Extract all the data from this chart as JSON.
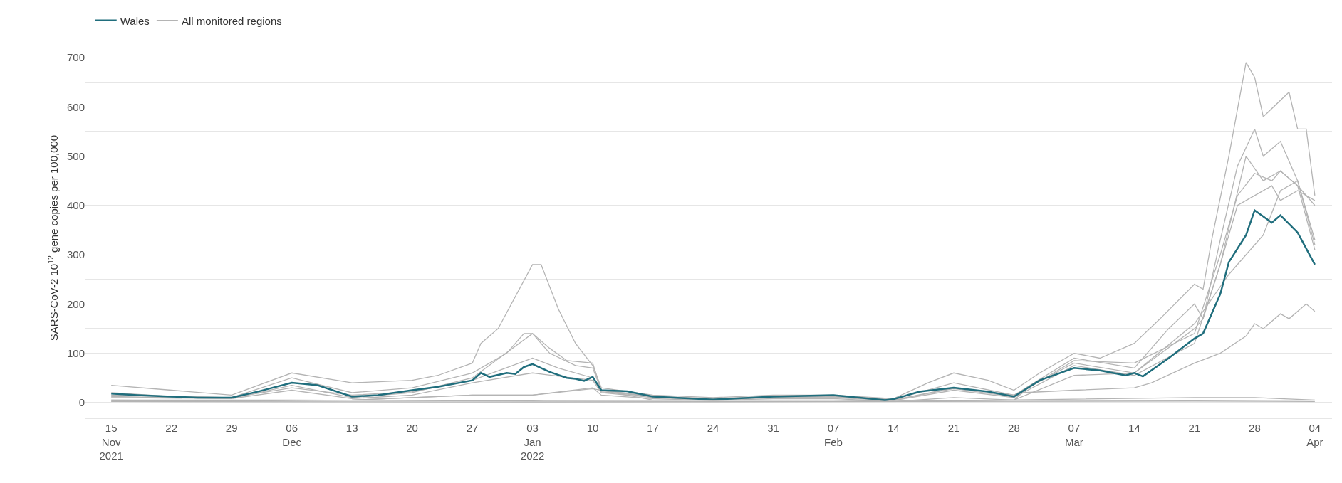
{
  "chart_data": {
    "type": "line",
    "ylabel": "SARS-CoV-2 10$^{12}$ gene copies per 100,000",
    "xlim": [
      "2021-11-12",
      "2022-04-06"
    ],
    "xticks": [
      {
        "value": "2021-11-15",
        "label": "15\nNov\n2021"
      },
      {
        "value": "2021-11-22",
        "label": "22"
      },
      {
        "value": "2021-11-29",
        "label": "29"
      },
      {
        "value": "2021-12-06",
        "label": "06\nDec"
      },
      {
        "value": "2021-12-13",
        "label": "13"
      },
      {
        "value": "2021-12-20",
        "label": "20"
      },
      {
        "value": "2021-12-27",
        "label": "27"
      },
      {
        "value": "2022-01-03",
        "label": "03\nJan\n2022"
      },
      {
        "value": "2022-01-10",
        "label": "10"
      },
      {
        "value": "2022-01-17",
        "label": "17"
      },
      {
        "value": "2022-01-24",
        "label": "24"
      },
      {
        "value": "2022-01-31",
        "label": "31"
      },
      {
        "value": "2022-02-07",
        "label": "07\nFeb"
      },
      {
        "value": "2022-02-14",
        "label": "14"
      },
      {
        "value": "2022-02-21",
        "label": "21"
      },
      {
        "value": "2022-02-28",
        "label": "28"
      },
      {
        "value": "2022-03-07",
        "label": "07\nMar"
      },
      {
        "value": "2022-03-14",
        "label": "14"
      },
      {
        "value": "2022-03-21",
        "label": "21"
      },
      {
        "value": "2022-03-28",
        "label": "28"
      },
      {
        "value": "2022-04-04",
        "label": "04\nApr"
      }
    ],
    "ylim": [
      -32,
      700
    ],
    "yticks": [
      0,
      {
        "value": 50,
        "label": null
      },
      100,
      {
        "value": 150,
        "label": null
      },
      200,
      {
        "value": 250,
        "label": null
      },
      300,
      {
        "value": 350,
        "label": null
      },
      400,
      {
        "value": 450,
        "label": null
      },
      500,
      {
        "value": 550,
        "label": null
      },
      600,
      {
        "value": 650,
        "label": null
      },
      700
    ],
    "grid": "y",
    "legend": "top left",
    "marker": "none",
    "line_style": "solid",
    "series": [
      {
        "name": "Wales",
        "color": "#206e7d",
        "x": [
          "2021-11-15",
          "2021-11-18",
          "2021-11-22",
          "2021-11-25",
          "2021-11-29",
          "2021-12-02",
          "2021-12-06",
          "2021-12-09",
          "2021-12-13",
          "2021-12-16",
          "2021-12-20",
          "2021-12-23",
          "2021-12-27",
          "2021-12-28",
          "2021-12-29",
          "2021-12-31",
          "2022-01-01",
          "2022-01-02",
          "2022-01-03",
          "2022-01-05",
          "2022-01-07",
          "2022-01-08",
          "2022-01-09",
          "2022-01-10",
          "2022-01-11",
          "2022-01-14",
          "2022-01-17",
          "2022-01-24",
          "2022-01-31",
          "2022-02-07",
          "2022-02-13",
          "2022-02-14",
          "2022-02-17",
          "2022-02-21",
          "2022-02-25",
          "2022-02-28",
          "2022-03-03",
          "2022-03-07",
          "2022-03-10",
          "2022-03-13",
          "2022-03-14",
          "2022-03-15",
          "2022-03-18",
          "2022-03-21",
          "2022-03-22",
          "2022-03-24",
          "2022-03-25",
          "2022-03-27",
          "2022-03-28",
          "2022-03-30",
          "2022-03-31",
          "2022-04-02",
          "2022-04-04"
        ],
        "values": [
          18,
          15,
          12,
          10,
          10,
          22,
          40,
          35,
          12,
          15,
          25,
          32,
          45,
          60,
          52,
          60,
          58,
          72,
          78,
          62,
          50,
          48,
          44,
          52,
          25,
          23,
          12,
          6,
          12,
          15,
          5,
          7,
          22,
          30,
          22,
          12,
          45,
          70,
          65,
          55,
          60,
          53,
          90,
          130,
          140,
          220,
          285,
          340,
          390,
          365,
          380,
          345,
          280
        ]
      },
      {
        "name": "All monitored regions",
        "color": "#b4b4b4",
        "x": [
          "2021-11-15",
          "2021-11-22",
          "2021-11-29",
          "2021-12-06",
          "2021-12-13",
          "2021-12-20",
          "2021-12-23",
          "2021-12-27",
          "2021-12-28",
          "2021-12-30",
          "2022-01-03",
          "2022-01-04",
          "2022-01-06",
          "2022-01-08",
          "2022-01-10",
          "2022-01-11",
          "2022-01-17",
          "2022-01-24",
          "2022-01-31",
          "2022-02-07",
          "2022-02-14",
          "2022-02-18",
          "2022-02-21",
          "2022-02-25",
          "2022-02-28",
          "2022-03-03",
          "2022-03-07",
          "2022-03-10",
          "2022-03-14",
          "2022-03-17",
          "2022-03-21",
          "2022-03-22",
          "2022-03-23",
          "2022-03-25",
          "2022-03-27",
          "2022-03-28",
          "2022-03-29",
          "2022-04-01",
          "2022-04-02",
          "2022-04-03",
          "2022-04-04"
        ],
        "values": [
          35,
          25,
          15,
          60,
          40,
          45,
          55,
          80,
          120,
          150,
          280,
          280,
          190,
          120,
          75,
          30,
          15,
          10,
          15,
          15,
          8,
          40,
          60,
          45,
          25,
          60,
          100,
          90,
          120,
          170,
          240,
          230,
          330,
          500,
          690,
          660,
          580,
          630,
          555,
          555,
          420
        ]
      },
      {
        "color": "#b4b4b4",
        "x": [
          "2021-11-15",
          "2021-11-22",
          "2021-11-29",
          "2021-12-06",
          "2021-12-13",
          "2021-12-20",
          "2021-12-27",
          "2021-12-31",
          "2022-01-02",
          "2022-01-03",
          "2022-01-05",
          "2022-01-07",
          "2022-01-10",
          "2022-01-11",
          "2022-01-17",
          "2022-01-24",
          "2022-01-31",
          "2022-02-07",
          "2022-02-14",
          "2022-02-21",
          "2022-02-28",
          "2022-03-07",
          "2022-03-14",
          "2022-03-18",
          "2022-03-21",
          "2022-03-22",
          "2022-03-24",
          "2022-03-26",
          "2022-03-28",
          "2022-03-29",
          "2022-03-31",
          "2022-04-02",
          "2022-04-04"
        ],
        "values": [
          20,
          12,
          10,
          50,
          20,
          30,
          60,
          100,
          140,
          140,
          110,
          85,
          80,
          25,
          12,
          8,
          12,
          14,
          6,
          40,
          15,
          90,
          70,
          150,
          200,
          170,
          330,
          480,
          555,
          500,
          530,
          450,
          320
        ]
      },
      {
        "color": "#b4b4b4",
        "x": [
          "2021-11-15",
          "2021-11-29",
          "2021-12-06",
          "2021-12-13",
          "2021-12-20",
          "2021-12-27",
          "2022-01-03",
          "2022-01-05",
          "2022-01-08",
          "2022-01-10",
          "2022-01-11",
          "2022-01-17",
          "2022-01-24",
          "2022-01-31",
          "2022-02-07",
          "2022-02-14",
          "2022-02-21",
          "2022-02-28",
          "2022-03-07",
          "2022-03-14",
          "2022-03-21",
          "2022-03-22",
          "2022-03-24",
          "2022-03-27",
          "2022-03-29",
          "2022-03-31",
          "2022-04-02",
          "2022-04-04"
        ],
        "values": [
          12,
          8,
          35,
          10,
          20,
          50,
          140,
          100,
          75,
          70,
          25,
          12,
          8,
          12,
          12,
          5,
          30,
          15,
          80,
          60,
          150,
          170,
          280,
          500,
          450,
          470,
          440,
          310
        ]
      },
      {
        "color": "#b4b4b4",
        "x": [
          "2021-11-15",
          "2021-11-29",
          "2021-12-06",
          "2021-12-13",
          "2021-12-20",
          "2021-12-27",
          "2022-01-03",
          "2022-01-06",
          "2022-01-10",
          "2022-01-11",
          "2022-01-17",
          "2022-01-24",
          "2022-01-31",
          "2022-02-07",
          "2022-02-14",
          "2022-02-21",
          "2022-02-28",
          "2022-03-07",
          "2022-03-14",
          "2022-03-21",
          "2022-03-24",
          "2022-03-26",
          "2022-03-28",
          "2022-03-30",
          "2022-03-31",
          "2022-04-02",
          "2022-04-04"
        ],
        "values": [
          15,
          10,
          30,
          15,
          22,
          45,
          90,
          70,
          50,
          22,
          12,
          8,
          10,
          12,
          5,
          28,
          12,
          85,
          80,
          140,
          300,
          420,
          465,
          450,
          470,
          440,
          400
        ]
      },
      {
        "color": "#b4b4b4",
        "x": [
          "2021-11-15",
          "2021-11-29",
          "2021-12-06",
          "2021-12-13",
          "2021-12-20",
          "2021-12-27",
          "2022-01-03",
          "2022-01-10",
          "2022-01-11",
          "2022-01-17",
          "2022-01-24",
          "2022-01-31",
          "2022-02-07",
          "2022-02-14",
          "2022-02-21",
          "2022-02-28",
          "2022-03-07",
          "2022-03-14",
          "2022-03-21",
          "2022-03-24",
          "2022-03-26",
          "2022-03-28",
          "2022-03-30",
          "2022-03-31",
          "2022-04-02",
          "2022-04-04"
        ],
        "values": [
          10,
          8,
          25,
          8,
          15,
          40,
          60,
          45,
          20,
          10,
          5,
          10,
          10,
          4,
          25,
          10,
          75,
          55,
          120,
          280,
          400,
          420,
          440,
          410,
          430,
          410
        ]
      },
      {
        "color": "#b4b4b4",
        "x": [
          "2021-11-15",
          "2021-11-29",
          "2021-12-13",
          "2021-12-27",
          "2022-01-03",
          "2022-01-10",
          "2022-01-11",
          "2022-01-17",
          "2022-01-24",
          "2022-01-31",
          "2022-02-07",
          "2022-02-14",
          "2022-02-21",
          "2022-02-28",
          "2022-03-07",
          "2022-03-14",
          "2022-03-21",
          "2022-03-25",
          "2022-03-27",
          "2022-03-29",
          "2022-03-31",
          "2022-04-02",
          "2022-04-04"
        ],
        "values": [
          5,
          3,
          5,
          15,
          15,
          30,
          15,
          8,
          4,
          8,
          8,
          2,
          10,
          5,
          55,
          60,
          160,
          260,
          300,
          340,
          430,
          450,
          330
        ]
      },
      {
        "color": "#b4b4b4",
        "x": [
          "2021-11-15",
          "2021-12-13",
          "2021-12-27",
          "2022-01-03",
          "2022-01-10",
          "2022-01-17",
          "2022-02-07",
          "2022-02-14",
          "2022-02-28",
          "2022-03-01",
          "2022-03-07",
          "2022-03-14",
          "2022-03-16",
          "2022-03-21",
          "2022-03-24",
          "2022-03-27",
          "2022-03-28",
          "2022-03-29",
          "2022-03-31",
          "2022-04-01",
          "2022-04-03",
          "2022-04-04"
        ],
        "values": [
          3,
          5,
          15,
          15,
          28,
          5,
          5,
          2,
          5,
          20,
          25,
          30,
          40,
          80,
          100,
          135,
          160,
          150,
          180,
          170,
          200,
          185
        ]
      },
      {
        "color": "#b4b4b4",
        "x": [
          "2021-11-15",
          "2021-12-06",
          "2022-01-03",
          "2022-02-14",
          "2022-03-21",
          "2022-03-28",
          "2022-04-04"
        ],
        "values": [
          5,
          5,
          3,
          2,
          10,
          10,
          5
        ]
      },
      {
        "color": "#b4b4b4",
        "x": [
          "2021-11-15",
          "2022-01-03",
          "2022-03-21",
          "2022-04-04"
        ],
        "values": [
          2,
          1,
          3,
          2
        ]
      }
    ]
  }
}
